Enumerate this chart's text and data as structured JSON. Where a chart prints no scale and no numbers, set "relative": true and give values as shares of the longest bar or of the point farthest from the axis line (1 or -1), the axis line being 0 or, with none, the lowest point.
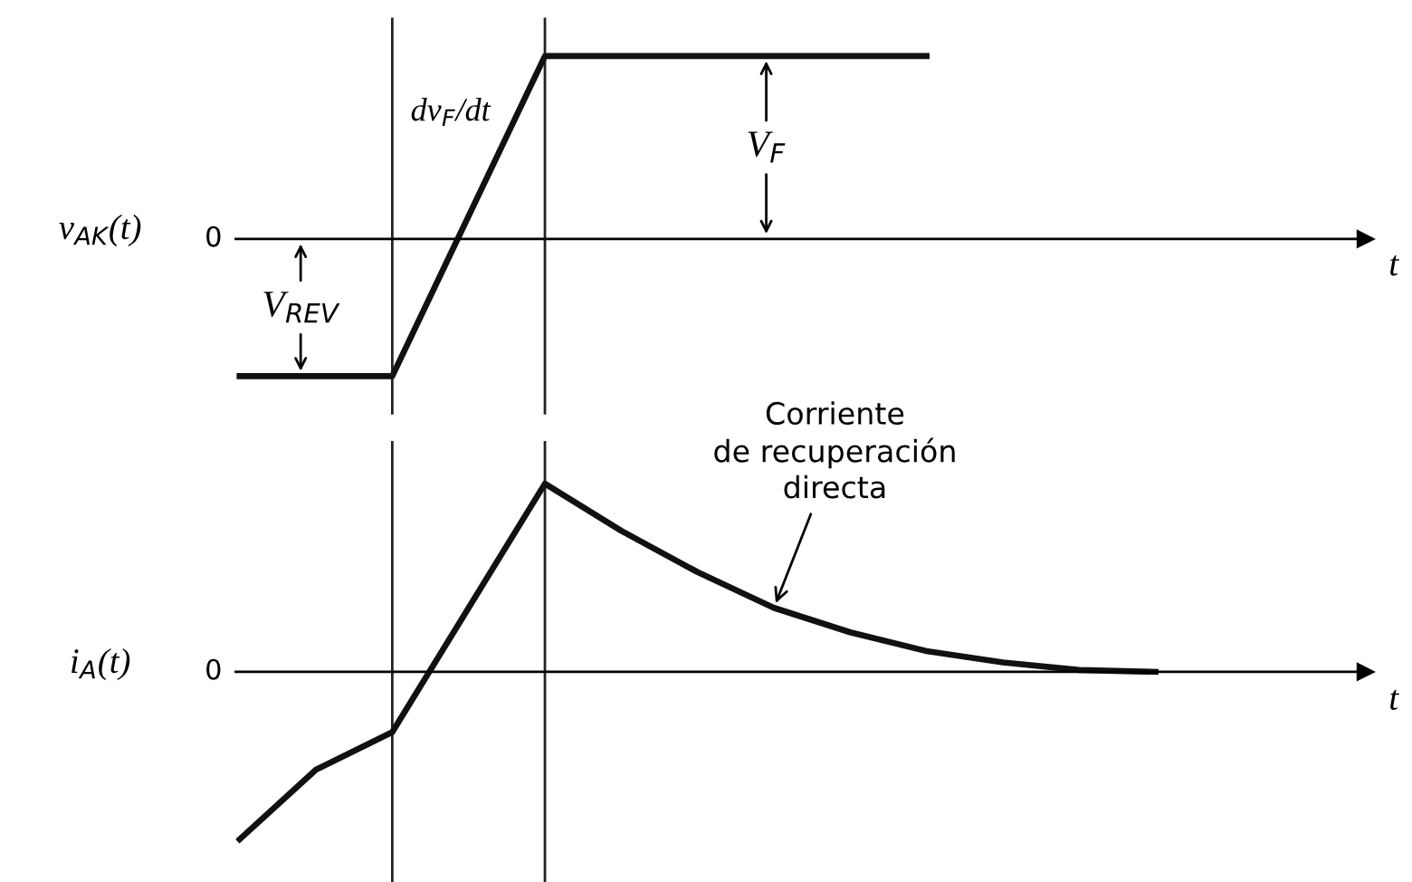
{
  "chart_data": [
    {
      "type": "line",
      "relative": true,
      "ylabel": "v$_{AK}$(t)",
      "xlabel": "t",
      "categories": [
        null,
        null,
        null,
        null,
        null,
        null,
        null,
        null,
        null,
        null,
        null,
        null,
        null,
        null,
        null
      ],
      "marker": "none",
      "line_style": "solid",
      "series": [
        {
          "color": "#111111",
          "values": [
            -0.75,
            -0.75,
            -0.75,
            0.125,
            1,
            1,
            1,
            1,
            1,
            1,
            null,
            null,
            null,
            null,
            null
          ]
        }
      ],
      "annotations": [
        "0",
        "dv$_{F}$/dt",
        "V$_{F}$",
        "V$_{REV}$"
      ]
    },
    {
      "type": "line",
      "relative": true,
      "ylabel": "i$_{A}$(t)",
      "xlabel": "t",
      "categories": [
        null,
        null,
        null,
        null,
        null,
        null,
        null,
        null,
        null,
        null,
        null,
        null,
        null,
        null,
        null
      ],
      "marker": "none",
      "line_style": "solid",
      "series": [
        {
          "color": "#111111",
          "values": [
            -0.89,
            -0.52,
            -0.32,
            0.34,
            1,
            0.75,
            0.53,
            0.34,
            0.21,
            0.11,
            0.05,
            0.01,
            0,
            null,
            null
          ]
        }
      ],
      "annotations": [
        "0",
        "Corriente\nde recuperación\ndirecta"
      ]
    }
  ]
}
